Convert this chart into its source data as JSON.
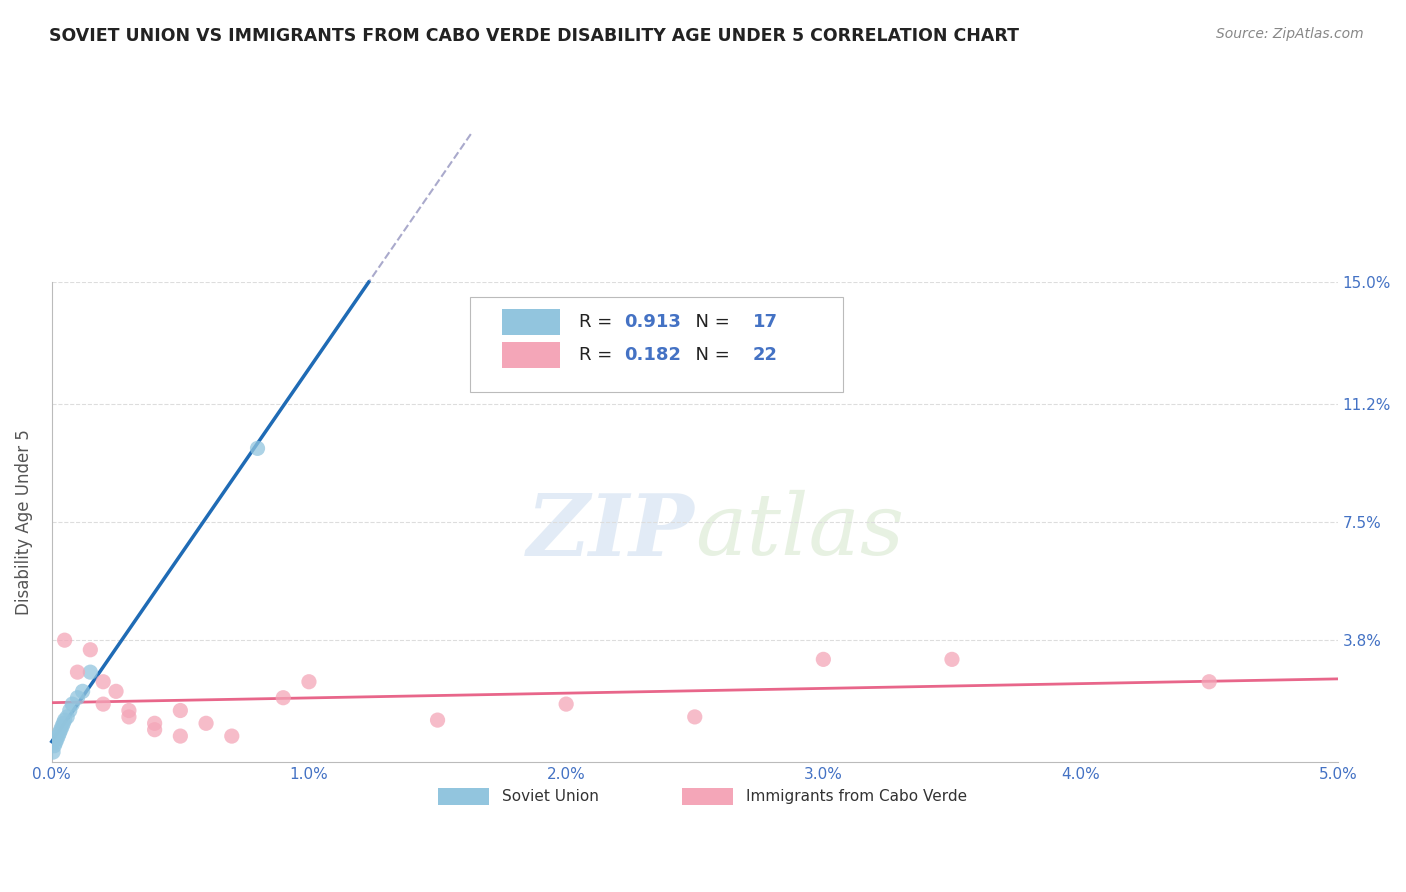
{
  "title": "SOVIET UNION VS IMMIGRANTS FROM CABO VERDE DISABILITY AGE UNDER 5 CORRELATION CHART",
  "source": "Source: ZipAtlas.com",
  "ylabel": "Disability Age Under 5",
  "xlim": [
    0.0,
    0.05
  ],
  "ylim": [
    0.0,
    0.15
  ],
  "xticks": [
    0.0,
    0.01,
    0.02,
    0.03,
    0.04,
    0.05
  ],
  "xtick_labels": [
    "0.0%",
    "1.0%",
    "2.0%",
    "3.0%",
    "4.0%",
    "5.0%"
  ],
  "yticks": [
    0.0,
    0.038,
    0.075,
    0.112,
    0.15
  ],
  "ytick_labels": [
    "",
    "3.8%",
    "7.5%",
    "11.2%",
    "15.0%"
  ],
  "soviet_x": [
    5e-05,
    0.0001,
    0.00015,
    0.0002,
    0.00025,
    0.0003,
    0.00035,
    0.0004,
    0.00045,
    0.0005,
    0.0006,
    0.0007,
    0.0008,
    0.001,
    0.0012,
    0.0015,
    0.008
  ],
  "soviet_y": [
    0.003,
    0.005,
    0.006,
    0.007,
    0.008,
    0.009,
    0.01,
    0.011,
    0.012,
    0.013,
    0.014,
    0.016,
    0.018,
    0.02,
    0.022,
    0.028,
    0.098
  ],
  "cabo_x": [
    0.0005,
    0.001,
    0.0015,
    0.002,
    0.002,
    0.0025,
    0.003,
    0.003,
    0.004,
    0.004,
    0.005,
    0.005,
    0.006,
    0.007,
    0.009,
    0.01,
    0.015,
    0.02,
    0.025,
    0.03,
    0.035,
    0.045
  ],
  "cabo_y": [
    0.038,
    0.028,
    0.035,
    0.018,
    0.025,
    0.022,
    0.014,
    0.016,
    0.01,
    0.012,
    0.016,
    0.008,
    0.012,
    0.008,
    0.02,
    0.025,
    0.013,
    0.018,
    0.014,
    0.032,
    0.032,
    0.025
  ],
  "R_soviet": 0.913,
  "N_soviet": 17,
  "R_cabo": 0.182,
  "N_cabo": 22,
  "blue_color": "#92c5de",
  "pink_color": "#f4a6b8",
  "blue_line_color": "#1f6bb5",
  "pink_line_color": "#e8668a",
  "blue_text_color": "#4472c4",
  "pink_text_color": "#e8668a",
  "marker_size": 120,
  "background_color": "#ffffff",
  "grid_color": "#cccccc"
}
